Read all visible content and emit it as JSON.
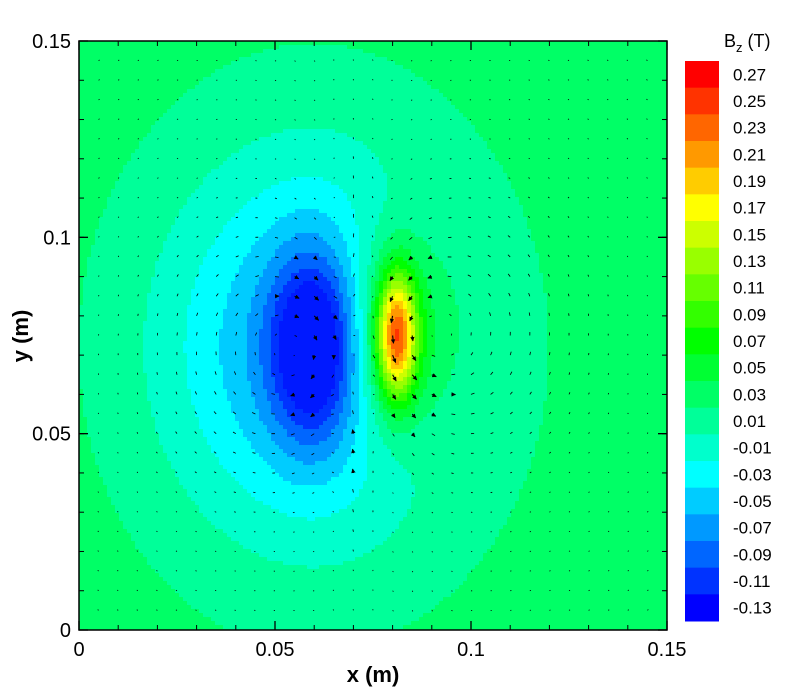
{
  "chart_data": {
    "type": "heatmap",
    "title": "",
    "xlabel": "x (m)",
    "ylabel": "y (m)",
    "xlim": [
      0,
      0.15
    ],
    "ylim": [
      0,
      0.15
    ],
    "x_ticks": [
      0,
      0.05,
      0.1,
      0.15
    ],
    "x_tick_labels": [
      "0",
      "0.05",
      "0.1",
      "0.15"
    ],
    "y_ticks": [
      0,
      0.05,
      0.1,
      0.15
    ],
    "y_tick_labels": [
      "0",
      "0.05",
      "0.1",
      "0.15"
    ],
    "colorbar": {
      "title_main": "B",
      "title_sub": "z",
      "title_unit": " (T)",
      "levels": [
        0.27,
        0.25,
        0.23,
        0.21,
        0.19,
        0.17,
        0.15,
        0.13,
        0.11,
        0.09,
        0.07,
        0.05,
        0.03,
        0.01,
        -0.01,
        -0.03,
        -0.05,
        -0.07,
        -0.09,
        -0.11,
        -0.13
      ],
      "level_labels": [
        "0.27",
        "0.25",
        "0.23",
        "0.21",
        "0.19",
        "0.17",
        "0.15",
        "0.13",
        "0.11",
        "0.09",
        "0.07",
        "0.05",
        "0.03",
        "0.01",
        "-0.01",
        "-0.03",
        "-0.05",
        "-0.07",
        "-0.09",
        "-0.11",
        "-0.13"
      ],
      "range": [
        -0.13,
        0.27
      ],
      "colormap": [
        "#0000ff",
        "#00ffff",
        "#00ff00",
        "#ffff00",
        "#ff0000"
      ]
    },
    "field": {
      "background": 0.03,
      "features": [
        {
          "kind": "negative-lobe",
          "x": 0.06,
          "y": 0.072,
          "peak": -0.13
        },
        {
          "kind": "positive-lobe",
          "x": 0.081,
          "y": 0.075,
          "peak": 0.27
        }
      ],
      "vector_field": "arrows circulating around the lobes, strongest upward between x=0.066 and x=0.076",
      "vector_grid_spacing": 0.005
    },
    "grid": false,
    "legend_position": "right"
  }
}
